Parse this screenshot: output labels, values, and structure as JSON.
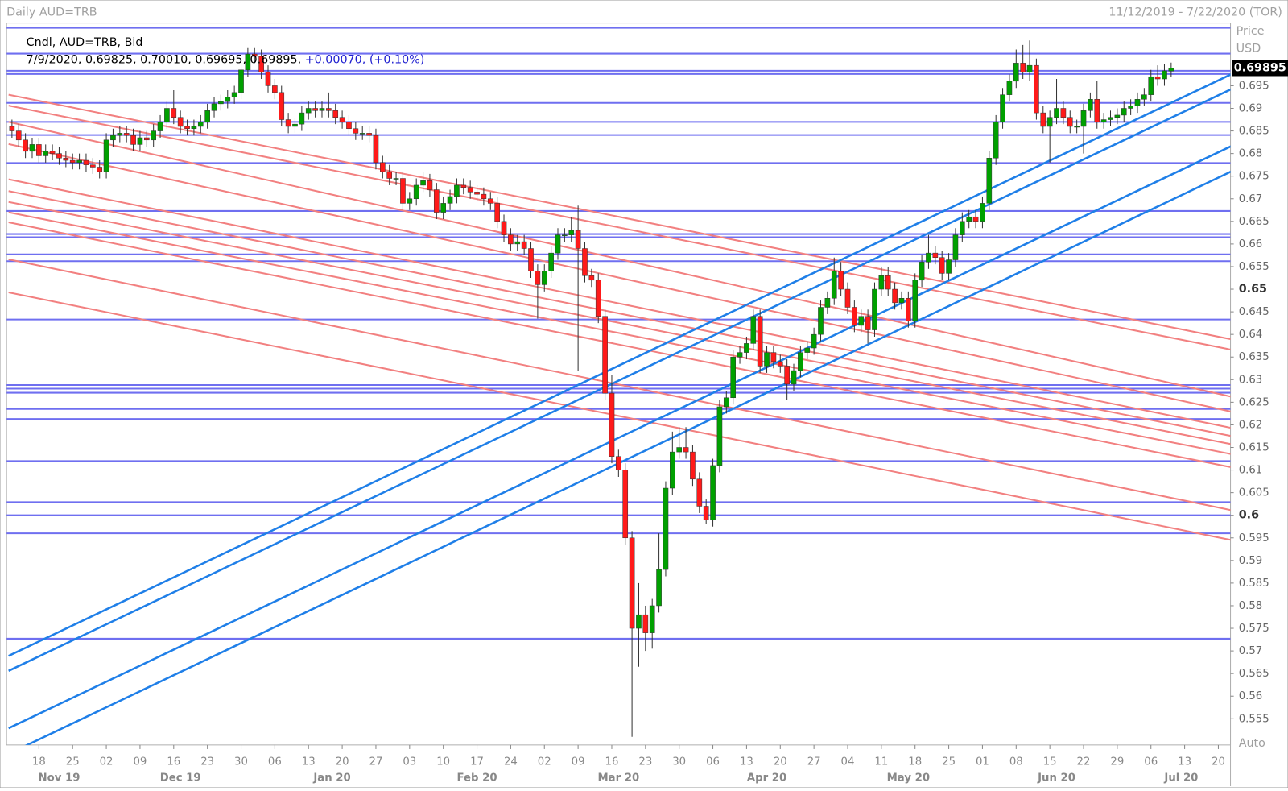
{
  "header": {
    "title": "Daily AUD=TRB",
    "range": "11/12/2019 - 7/22/2020 (TOR)"
  },
  "info": {
    "series": "Cndl, AUD=TRB, Bid",
    "date": "7/9/2020",
    "ohlc": "0.69825, 0.70010, 0.69695, 0.69895,",
    "change": "+0.00070, (+0.10%)"
  },
  "axis": {
    "label": "Price",
    "unit": "USD",
    "mode": "Auto"
  },
  "chart_data": {
    "type": "candlestick",
    "up_color": "#00a000",
    "down_color": "#ff1a1a",
    "xlim": [
      -0.8,
      180.8
    ],
    "ylim": [
      0.5492,
      0.7085
    ],
    "yticks": [
      0.555,
      0.56,
      0.565,
      0.57,
      0.575,
      0.58,
      0.585,
      0.59,
      0.595,
      0.6,
      0.605,
      0.61,
      0.615,
      0.62,
      0.625,
      0.63,
      0.635,
      0.64,
      0.645,
      0.65,
      0.655,
      0.66,
      0.665,
      0.67,
      0.675,
      0.68,
      0.685,
      0.69,
      0.695
    ],
    "bold_yticks": [
      0.6,
      0.65
    ],
    "xticks": [
      {
        "value": 4,
        "label": "18"
      },
      {
        "value": 9,
        "label": "25"
      },
      {
        "value": 14,
        "label": "02"
      },
      {
        "value": 19,
        "label": "09"
      },
      {
        "value": 24,
        "label": "16"
      },
      {
        "value": 29,
        "label": "23"
      },
      {
        "value": 34,
        "label": "30"
      },
      {
        "value": 39,
        "label": "06"
      },
      {
        "value": 44,
        "label": "13"
      },
      {
        "value": 49,
        "label": "20"
      },
      {
        "value": 54,
        "label": "27"
      },
      {
        "value": 59,
        "label": "03"
      },
      {
        "value": 64,
        "label": "10"
      },
      {
        "value": 69,
        "label": "17"
      },
      {
        "value": 74,
        "label": "24"
      },
      {
        "value": 79,
        "label": "02"
      },
      {
        "value": 84,
        "label": "09"
      },
      {
        "value": 89,
        "label": "16"
      },
      {
        "value": 94,
        "label": "23"
      },
      {
        "value": 99,
        "label": "30"
      },
      {
        "value": 104,
        "label": "06"
      },
      {
        "value": 109,
        "label": "13"
      },
      {
        "value": 114,
        "label": "20"
      },
      {
        "value": 119,
        "label": "27"
      },
      {
        "value": 124,
        "label": "04"
      },
      {
        "value": 129,
        "label": "11"
      },
      {
        "value": 134,
        "label": "18"
      },
      {
        "value": 139,
        "label": "25"
      },
      {
        "value": 144,
        "label": "01"
      },
      {
        "value": 149,
        "label": "08"
      },
      {
        "value": 154,
        "label": "15"
      },
      {
        "value": 159,
        "label": "22"
      },
      {
        "value": 164,
        "label": "29"
      },
      {
        "value": 169,
        "label": "06"
      },
      {
        "value": 174,
        "label": "13"
      },
      {
        "value": 179,
        "label": "20"
      }
    ],
    "months": [
      {
        "value": 7,
        "label": "Nov 19"
      },
      {
        "value": 25,
        "label": "Dec 19"
      },
      {
        "value": 47.5,
        "label": "Jan 20"
      },
      {
        "value": 69,
        "label": "Feb 20"
      },
      {
        "value": 90,
        "label": "Mar 20"
      },
      {
        "value": 112,
        "label": "Apr 20"
      },
      {
        "value": 133,
        "label": "May 20"
      },
      {
        "value": 155,
        "label": "Jun 20"
      },
      {
        "value": 173.5,
        "label": "Jul 20"
      }
    ],
    "hlines": {
      "color": "#6f6ff0",
      "values": [
        0.7078,
        0.7021,
        0.6983,
        0.6976,
        0.6912,
        0.687,
        0.6841,
        0.6779,
        0.6673,
        0.6622,
        0.6615,
        0.6577,
        0.6562,
        0.6433,
        0.6288,
        0.628,
        0.6271,
        0.6235,
        0.6213,
        0.612,
        0.6029,
        0.6,
        0.596,
        0.5727
      ]
    },
    "blue_lines": {
      "color": "#1f7fe8",
      "lines": [
        [
          -0.5,
          0.5689,
          181,
          0.6976
        ],
        [
          -0.5,
          0.5656,
          181,
          0.6943
        ],
        [
          -0.5,
          0.5529,
          181,
          0.6817
        ],
        [
          1,
          0.5483,
          181,
          0.6761
        ]
      ]
    },
    "red_lines": {
      "color": "#f28080",
      "lines": [
        [
          -0.5,
          0.693,
          181,
          0.6389
        ],
        [
          -0.5,
          0.6906,
          181,
          0.6366
        ],
        [
          -0.5,
          0.687,
          181,
          0.6262
        ],
        [
          -0.5,
          0.6821,
          181,
          0.6229
        ],
        [
          -0.5,
          0.6743,
          181,
          0.6193
        ],
        [
          -0.5,
          0.6717,
          181,
          0.6175
        ],
        [
          -0.5,
          0.6693,
          181,
          0.6157
        ],
        [
          -0.5,
          0.667,
          181,
          0.6135
        ],
        [
          -0.5,
          0.6648,
          181,
          0.6106
        ],
        [
          -0.5,
          0.6566,
          181,
          0.6011
        ],
        [
          -0.5,
          0.6493,
          181,
          0.5945
        ]
      ]
    },
    "candles": [
      [
        0.686,
        0.6875,
        0.6835,
        0.685
      ],
      [
        0.685,
        0.6865,
        0.6815,
        0.683
      ],
      [
        0.683,
        0.6845,
        0.679,
        0.6805
      ],
      [
        0.6805,
        0.6835,
        0.679,
        0.682
      ],
      [
        0.682,
        0.6835,
        0.678,
        0.6795
      ],
      [
        0.6795,
        0.682,
        0.678,
        0.6805
      ],
      [
        0.6805,
        0.682,
        0.6785,
        0.68
      ],
      [
        0.68,
        0.6815,
        0.6775,
        0.679
      ],
      [
        0.679,
        0.6805,
        0.677,
        0.6785
      ],
      [
        0.6785,
        0.68,
        0.6765,
        0.678
      ],
      [
        0.678,
        0.68,
        0.6765,
        0.6785
      ],
      [
        0.6785,
        0.68,
        0.676,
        0.6775
      ],
      [
        0.6775,
        0.679,
        0.6755,
        0.677
      ],
      [
        0.677,
        0.6785,
        0.6745,
        0.676
      ],
      [
        0.676,
        0.6845,
        0.6745,
        0.683
      ],
      [
        0.683,
        0.6855,
        0.6815,
        0.684
      ],
      [
        0.684,
        0.686,
        0.6825,
        0.6845
      ],
      [
        0.6845,
        0.686,
        0.6825,
        0.684
      ],
      [
        0.684,
        0.6855,
        0.6805,
        0.682
      ],
      [
        0.682,
        0.685,
        0.6805,
        0.6835
      ],
      [
        0.6835,
        0.685,
        0.6815,
        0.683
      ],
      [
        0.683,
        0.6865,
        0.6815,
        0.685
      ],
      [
        0.685,
        0.6885,
        0.6835,
        0.687
      ],
      [
        0.687,
        0.6915,
        0.6855,
        0.69
      ],
      [
        0.69,
        0.694,
        0.6865,
        0.688
      ],
      [
        0.688,
        0.6895,
        0.6845,
        0.686
      ],
      [
        0.686,
        0.6875,
        0.684,
        0.6855
      ],
      [
        0.6855,
        0.6875,
        0.684,
        0.686
      ],
      [
        0.686,
        0.6885,
        0.6845,
        0.687
      ],
      [
        0.687,
        0.691,
        0.6855,
        0.6895
      ],
      [
        0.6895,
        0.6925,
        0.688,
        0.691
      ],
      [
        0.691,
        0.693,
        0.6895,
        0.6915
      ],
      [
        0.6915,
        0.694,
        0.69,
        0.6925
      ],
      [
        0.6925,
        0.695,
        0.691,
        0.6935
      ],
      [
        0.6935,
        0.7,
        0.692,
        0.6985
      ],
      [
        0.6985,
        0.7035,
        0.697,
        0.702
      ],
      [
        0.702,
        0.7035,
        0.7,
        0.7015
      ],
      [
        0.7015,
        0.703,
        0.6965,
        0.698
      ],
      [
        0.698,
        0.6995,
        0.6935,
        0.695
      ],
      [
        0.695,
        0.6965,
        0.692,
        0.6935
      ],
      [
        0.6935,
        0.695,
        0.686,
        0.6875
      ],
      [
        0.6875,
        0.689,
        0.6845,
        0.686
      ],
      [
        0.686,
        0.688,
        0.6845,
        0.6865
      ],
      [
        0.6865,
        0.6905,
        0.685,
        0.689
      ],
      [
        0.689,
        0.6915,
        0.6875,
        0.69
      ],
      [
        0.69,
        0.6915,
        0.688,
        0.6895
      ],
      [
        0.6895,
        0.6915,
        0.688,
        0.69
      ],
      [
        0.69,
        0.6935,
        0.688,
        0.6895
      ],
      [
        0.6895,
        0.691,
        0.6865,
        0.688
      ],
      [
        0.688,
        0.6895,
        0.6855,
        0.687
      ],
      [
        0.687,
        0.6885,
        0.684,
        0.6855
      ],
      [
        0.6855,
        0.687,
        0.683,
        0.6845
      ],
      [
        0.6845,
        0.686,
        0.683,
        0.6845
      ],
      [
        0.6845,
        0.686,
        0.6825,
        0.684
      ],
      [
        0.684,
        0.6855,
        0.6765,
        0.678
      ],
      [
        0.678,
        0.6795,
        0.6745,
        0.676
      ],
      [
        0.676,
        0.6775,
        0.673,
        0.6745
      ],
      [
        0.6745,
        0.676,
        0.673,
        0.6745
      ],
      [
        0.6745,
        0.676,
        0.6675,
        0.669
      ],
      [
        0.669,
        0.6715,
        0.6675,
        0.67
      ],
      [
        0.67,
        0.6745,
        0.6685,
        0.673
      ],
      [
        0.673,
        0.676,
        0.6715,
        0.674
      ],
      [
        0.674,
        0.6755,
        0.6705,
        0.672
      ],
      [
        0.672,
        0.6735,
        0.6655,
        0.667
      ],
      [
        0.667,
        0.6705,
        0.6655,
        0.669
      ],
      [
        0.669,
        0.672,
        0.6675,
        0.6705
      ],
      [
        0.6705,
        0.6745,
        0.669,
        0.673
      ],
      [
        0.673,
        0.6745,
        0.671,
        0.6725
      ],
      [
        0.6725,
        0.674,
        0.67,
        0.6715
      ],
      [
        0.6715,
        0.673,
        0.6695,
        0.671
      ],
      [
        0.671,
        0.6725,
        0.6685,
        0.67
      ],
      [
        0.67,
        0.6715,
        0.6675,
        0.669
      ],
      [
        0.669,
        0.6705,
        0.6635,
        0.665
      ],
      [
        0.665,
        0.6665,
        0.6605,
        0.662
      ],
      [
        0.662,
        0.6635,
        0.6585,
        0.66
      ],
      [
        0.66,
        0.662,
        0.6585,
        0.6605
      ],
      [
        0.6605,
        0.662,
        0.6575,
        0.659
      ],
      [
        0.659,
        0.6605,
        0.6525,
        0.654
      ],
      [
        0.654,
        0.6555,
        0.6435,
        0.651
      ],
      [
        0.651,
        0.6555,
        0.6495,
        0.654
      ],
      [
        0.654,
        0.6595,
        0.6525,
        0.658
      ],
      [
        0.658,
        0.6635,
        0.6565,
        0.662
      ],
      [
        0.662,
        0.6635,
        0.6605,
        0.662
      ],
      [
        0.662,
        0.666,
        0.6605,
        0.663
      ],
      [
        0.663,
        0.6685,
        0.632,
        0.659
      ],
      [
        0.659,
        0.6605,
        0.6515,
        0.653
      ],
      [
        0.653,
        0.6545,
        0.6505,
        0.652
      ],
      [
        0.652,
        0.6535,
        0.6425,
        0.644
      ],
      [
        0.644,
        0.6455,
        0.6255,
        0.627
      ],
      [
        0.627,
        0.631,
        0.6115,
        0.613
      ],
      [
        0.613,
        0.6145,
        0.6085,
        0.61
      ],
      [
        0.61,
        0.6115,
        0.5935,
        0.595
      ],
      [
        0.595,
        0.5965,
        0.551,
        0.575
      ],
      [
        0.575,
        0.585,
        0.5665,
        0.578
      ],
      [
        0.578,
        0.58,
        0.57,
        0.574
      ],
      [
        0.574,
        0.5815,
        0.5705,
        0.58
      ],
      [
        0.58,
        0.596,
        0.5785,
        0.588
      ],
      [
        0.588,
        0.6075,
        0.5865,
        0.606
      ],
      [
        0.606,
        0.6185,
        0.6045,
        0.614
      ],
      [
        0.614,
        0.6195,
        0.6125,
        0.615
      ],
      [
        0.615,
        0.6195,
        0.6125,
        0.614
      ],
      [
        0.614,
        0.6155,
        0.6065,
        0.608
      ],
      [
        0.608,
        0.6095,
        0.6005,
        0.602
      ],
      [
        0.602,
        0.6035,
        0.598,
        0.599
      ],
      [
        0.599,
        0.6125,
        0.5975,
        0.611
      ],
      [
        0.611,
        0.6255,
        0.6095,
        0.624
      ],
      [
        0.624,
        0.6275,
        0.6225,
        0.626
      ],
      [
        0.626,
        0.6365,
        0.6245,
        0.635
      ],
      [
        0.635,
        0.6375,
        0.6335,
        0.636
      ],
      [
        0.636,
        0.6395,
        0.6345,
        0.638
      ],
      [
        0.638,
        0.6455,
        0.6365,
        0.644
      ],
      [
        0.644,
        0.6455,
        0.6315,
        0.633
      ],
      [
        0.633,
        0.6375,
        0.6315,
        0.636
      ],
      [
        0.636,
        0.6375,
        0.6325,
        0.634
      ],
      [
        0.634,
        0.6355,
        0.6315,
        0.633
      ],
      [
        0.633,
        0.6345,
        0.6255,
        0.629
      ],
      [
        0.629,
        0.6335,
        0.6275,
        0.632
      ],
      [
        0.632,
        0.6375,
        0.6305,
        0.636
      ],
      [
        0.636,
        0.6385,
        0.6345,
        0.637
      ],
      [
        0.637,
        0.6415,
        0.6355,
        0.64
      ],
      [
        0.64,
        0.6475,
        0.6385,
        0.646
      ],
      [
        0.646,
        0.6495,
        0.6445,
        0.648
      ],
      [
        0.648,
        0.657,
        0.6465,
        0.654
      ],
      [
        0.654,
        0.656,
        0.6485,
        0.65
      ],
      [
        0.65,
        0.6515,
        0.6445,
        0.646
      ],
      [
        0.646,
        0.6475,
        0.6405,
        0.642
      ],
      [
        0.642,
        0.6455,
        0.6405,
        0.644
      ],
      [
        0.644,
        0.6455,
        0.638,
        0.641
      ],
      [
        0.641,
        0.6515,
        0.6395,
        0.65
      ],
      [
        0.65,
        0.655,
        0.6485,
        0.653
      ],
      [
        0.653,
        0.655,
        0.6485,
        0.65
      ],
      [
        0.65,
        0.6515,
        0.6455,
        0.647
      ],
      [
        0.647,
        0.6495,
        0.6455,
        0.648
      ],
      [
        0.648,
        0.6495,
        0.6415,
        0.643
      ],
      [
        0.643,
        0.6535,
        0.6415,
        0.652
      ],
      [
        0.652,
        0.6575,
        0.6505,
        0.656
      ],
      [
        0.656,
        0.662,
        0.6545,
        0.658
      ],
      [
        0.658,
        0.6595,
        0.6555,
        0.657
      ],
      [
        0.657,
        0.6585,
        0.652,
        0.6535
      ],
      [
        0.6535,
        0.658,
        0.652,
        0.6565
      ],
      [
        0.6565,
        0.6635,
        0.655,
        0.662
      ],
      [
        0.662,
        0.667,
        0.6605,
        0.665
      ],
      [
        0.665,
        0.6675,
        0.6635,
        0.666
      ],
      [
        0.666,
        0.6675,
        0.6635,
        0.665
      ],
      [
        0.665,
        0.6705,
        0.6635,
        0.669
      ],
      [
        0.669,
        0.6805,
        0.6675,
        0.679
      ],
      [
        0.679,
        0.6885,
        0.6775,
        0.687
      ],
      [
        0.687,
        0.6945,
        0.6855,
        0.693
      ],
      [
        0.693,
        0.6975,
        0.6915,
        0.696
      ],
      [
        0.696,
        0.703,
        0.6945,
        0.7
      ],
      [
        0.7,
        0.704,
        0.6965,
        0.698
      ],
      [
        0.698,
        0.705,
        0.696,
        0.6995
      ],
      [
        0.6995,
        0.701,
        0.6875,
        0.689
      ],
      [
        0.689,
        0.6905,
        0.6845,
        0.686
      ],
      [
        0.686,
        0.6895,
        0.678,
        0.688
      ],
      [
        0.688,
        0.6965,
        0.6865,
        0.69
      ],
      [
        0.69,
        0.6915,
        0.6865,
        0.688
      ],
      [
        0.688,
        0.6895,
        0.6845,
        0.686
      ],
      [
        0.686,
        0.6875,
        0.6845,
        0.686
      ],
      [
        0.686,
        0.691,
        0.68,
        0.6895
      ],
      [
        0.6895,
        0.6935,
        0.688,
        0.692
      ],
      [
        0.692,
        0.696,
        0.6855,
        0.687
      ],
      [
        0.687,
        0.689,
        0.6855,
        0.6875
      ],
      [
        0.6875,
        0.6895,
        0.686,
        0.688
      ],
      [
        0.688,
        0.69,
        0.6865,
        0.6885
      ],
      [
        0.6885,
        0.6915,
        0.687,
        0.69
      ],
      [
        0.69,
        0.692,
        0.6885,
        0.6905
      ],
      [
        0.6905,
        0.6935,
        0.689,
        0.692
      ],
      [
        0.692,
        0.6945,
        0.6905,
        0.693
      ],
      [
        0.693,
        0.6985,
        0.6915,
        0.697
      ],
      [
        0.697,
        0.6995,
        0.695,
        0.6965
      ],
      [
        0.6965,
        0.6998,
        0.695,
        0.6983
      ],
      [
        0.69825,
        0.7001,
        0.69695,
        0.69895
      ]
    ]
  }
}
